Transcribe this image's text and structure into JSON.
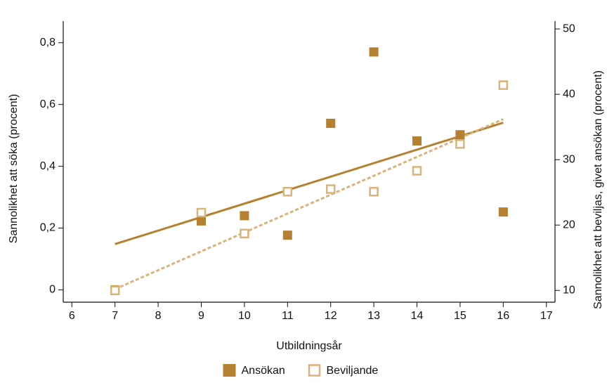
{
  "chart_data": {
    "type": "scatter",
    "x_label": "Utbildningsår",
    "y_label": "Sannolikhet att söka (procent)",
    "y2_label": "Sannolikhet att beviljas, givet ansökan (procent)",
    "x": [
      7,
      9,
      10,
      11,
      12,
      13,
      14,
      15,
      16
    ],
    "series": [
      {
        "name": "Ansökan",
        "color": "#b5802f",
        "marker": "filled",
        "values": [
          0.0,
          0.223,
          0.24,
          0.177,
          0.539,
          0.77,
          0.482,
          0.502,
          0.252
        ]
      },
      {
        "name": "Beviljande",
        "color": "#d9b47a",
        "marker": "hollow",
        "axis": "y2",
        "values": [
          10,
          21.9,
          18.7,
          25.1,
          25.5,
          25.1,
          28.3,
          32.4,
          41.4
        ]
      }
    ],
    "fit_lines": [
      {
        "color": "#b5802f",
        "style": "solid",
        "x": [
          7,
          16
        ],
        "values": [
          0.148,
          0.541
        ]
      },
      {
        "color": "#d9b47a",
        "style": "dotted",
        "axis": "y2",
        "x": [
          7,
          16
        ],
        "values": [
          10.2,
          36.2
        ]
      }
    ],
    "xlim": [
      5.8,
      17.2
    ],
    "xticks": [
      6,
      7,
      8,
      9,
      10,
      11,
      12,
      13,
      14,
      15,
      16,
      17
    ],
    "ylim": [
      -0.04,
      0.87
    ],
    "yticks": [
      0,
      {
        "value": 0.2,
        "label": "0,2"
      },
      {
        "value": 0.4,
        "label": "0,4"
      },
      {
        "value": 0.6,
        "label": "0,6"
      },
      {
        "value": 0.8,
        "label": "0,8"
      }
    ],
    "y2lim": [
      8.2,
      51.2
    ],
    "y2ticks": [
      10,
      20,
      30,
      40,
      50
    ],
    "legend": "bottom"
  }
}
